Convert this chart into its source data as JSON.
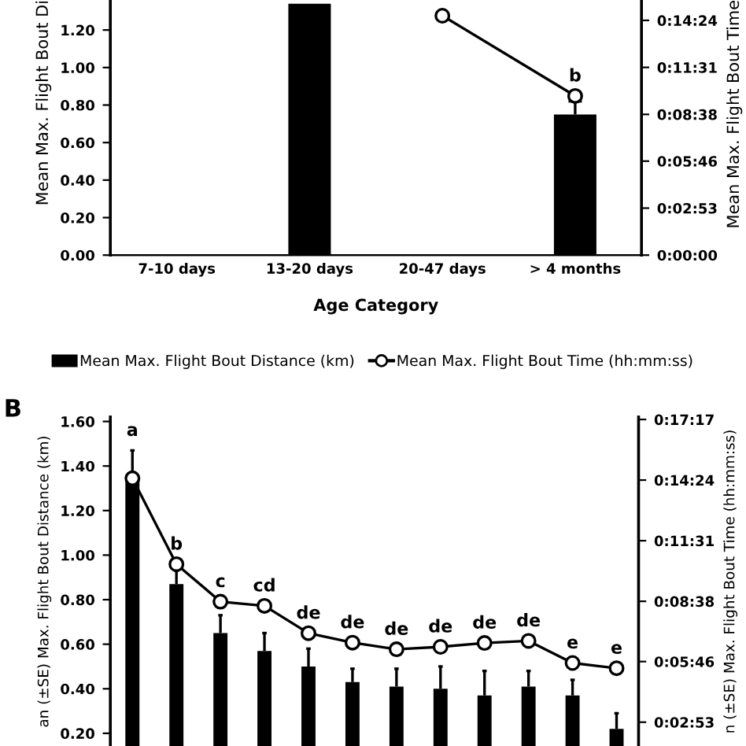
{
  "chart_data": [
    {
      "type": "bar",
      "categories": [
        "7-10 days",
        "13-20 days",
        "20-47 days",
        "> 4 months"
      ],
      "xlabel": "Age Category",
      "ylabel": "Mean Max. Flight Bout Di",
      "y2label": "Mean Max. Flight Bout Time",
      "series": [
        {
          "name": "Mean Max. Flight Bout Distance (km)",
          "color": "#000000",
          "values": [
            null,
            1.34,
            null,
            0.75
          ],
          "errors": [
            null,
            null,
            null,
            [
              0.75,
              0.82
            ]
          ]
        },
        {
          "name": "Mean Max. Flight Bout Time (hh:mm:ss)",
          "type": "line",
          "axis": "y2",
          "color": "#000000",
          "marker": "circle",
          "values": [
            null,
            null,
            881,
            586
          ]
        }
      ],
      "ylim": [
        0,
        1.36
      ],
      "yticks": [
        {
          "value": 0,
          "label": "0.00"
        },
        {
          "value": 0.2,
          "label": "0.20"
        },
        {
          "value": 0.4,
          "label": "0.40"
        },
        {
          "value": 0.6,
          "label": "0.60"
        },
        {
          "value": 0.8,
          "label": "0.80"
        },
        {
          "value": 1.0,
          "label": "1.00"
        },
        {
          "value": 1.2,
          "label": "1.20"
        }
      ],
      "y2lim": [
        0,
        939
      ],
      "y2ticks": [
        {
          "value": 0,
          "label": "0:00:00"
        },
        {
          "value": 173,
          "label": "0:02:53"
        },
        {
          "value": 346,
          "label": "0:05:46"
        },
        {
          "value": 518,
          "label": "0:08:38"
        },
        {
          "value": 691,
          "label": "0:11:31"
        },
        {
          "value": 864,
          "label": "0:14:24"
        }
      ],
      "annotations": [
        "b"
      ],
      "legend": "bottom",
      "grid": false
    },
    {
      "type": "bar",
      "categories": [
        null,
        null,
        null,
        null,
        null,
        null,
        null,
        null,
        null,
        null,
        null,
        null
      ],
      "ylabel": "an (±SE) Max. Flight Bout Distance (km)",
      "y2label": "n (±SE) Max. Flight Bout Time (hh:mm:ss)",
      "series": [
        {
          "color": "#000000",
          "values": [
            1.35,
            0.87,
            0.65,
            0.57,
            0.5,
            0.43,
            0.41,
            0.4,
            0.37,
            0.41,
            0.37,
            0.22
          ],
          "errors": [
            [
              1.35,
              1.47
            ],
            [
              0.87,
              0.93
            ],
            [
              0.65,
              0.73
            ],
            [
              0.57,
              0.65
            ],
            [
              0.5,
              0.58
            ],
            [
              0.43,
              0.49
            ],
            [
              0.41,
              0.49
            ],
            [
              0.4,
              0.5
            ],
            [
              0.37,
              0.48
            ],
            [
              0.41,
              0.48
            ],
            [
              0.37,
              0.44
            ],
            [
              0.22,
              0.29
            ]
          ]
        },
        {
          "type": "line",
          "axis": "y2",
          "color": "#000000",
          "marker": "circle",
          "values": [
            869,
            624,
            517,
            505,
            427,
            400,
            381,
            388,
            399,
            405,
            342,
            327
          ]
        }
      ],
      "ylim": [
        0.143,
        1.62
      ],
      "yticks": [
        {
          "value": 0.2,
          "label": "0.20"
        },
        {
          "value": 0.4,
          "label": "0.40"
        },
        {
          "value": 0.6,
          "label": "0.60"
        },
        {
          "value": 0.8,
          "label": "0.80"
        },
        {
          "value": 1.0,
          "label": "1.00"
        },
        {
          "value": 1.2,
          "label": "1.20"
        },
        {
          "value": 1.4,
          "label": "1.40"
        },
        {
          "value": 1.6,
          "label": "1.60"
        }
      ],
      "y2lim": [
        105,
        1044
      ],
      "y2ticks": [
        {
          "value": 173,
          "label": "0:02:53"
        },
        {
          "value": 346,
          "label": "0:05:46"
        },
        {
          "value": 518,
          "label": "0:08:38"
        },
        {
          "value": 691,
          "label": "0:11:31"
        },
        {
          "value": 864,
          "label": "0:14:24"
        },
        {
          "value": 1037,
          "label": "0:17:17"
        }
      ],
      "annotations": [
        "B",
        "a",
        "b",
        "c",
        "cd",
        "de",
        "de",
        "de",
        "de",
        "de",
        "de",
        "e",
        "e"
      ],
      "tick_labels": "y",
      "grid": false
    }
  ]
}
